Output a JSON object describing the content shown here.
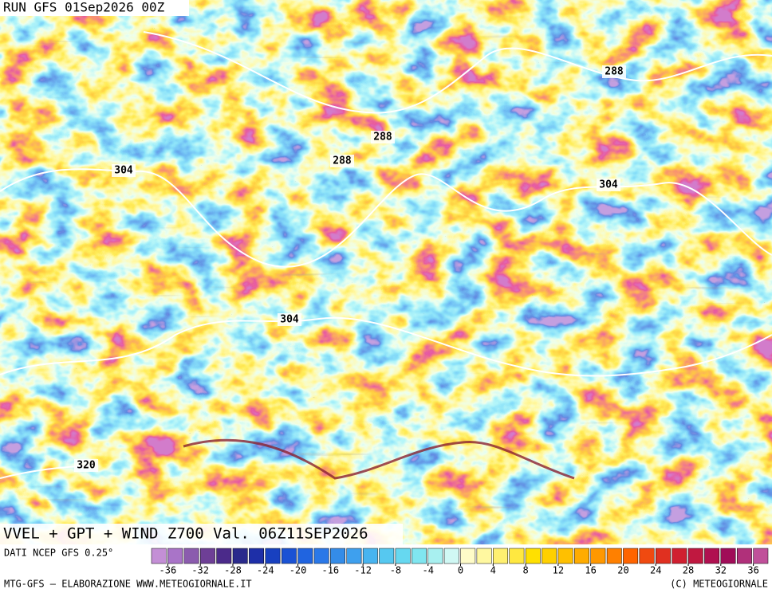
{
  "header": {
    "run": "RUN GFS 01Sep2026 00Z"
  },
  "map": {
    "title": "VVEL + GPT + WIND Z700 Val. 06Z11SEP2026",
    "contour_labels": [
      288,
      288,
      288,
      304,
      304,
      304,
      320
    ]
  },
  "colorbar": {
    "source": "DATI NCEP GFS 0.25°",
    "lim": [
      -38,
      38
    ],
    "ticks": [
      -36,
      -32,
      -28,
      -24,
      -20,
      -16,
      -12,
      -8,
      -4,
      0,
      4,
      8,
      12,
      16,
      20,
      24,
      28,
      32,
      36
    ],
    "colors": [
      "#c48fd6",
      "#a974c8",
      "#8b5cae",
      "#6e3f96",
      "#4b2a8a",
      "#2a2a8c",
      "#1e2fa8",
      "#1840c0",
      "#1a52d4",
      "#2064e0",
      "#2a78e8",
      "#348ce8",
      "#3ea0ee",
      "#48b4f0",
      "#56c8f0",
      "#66d8f0",
      "#80e6f0",
      "#a8f0f0",
      "#d0f8f4",
      "#fffcc8",
      "#fff8a0",
      "#fff070",
      "#ffe840",
      "#ffe000",
      "#ffd000",
      "#ffc000",
      "#ffac00",
      "#ff9800",
      "#ff8000",
      "#ff6400",
      "#f04a10",
      "#e03020",
      "#d02030",
      "#c01840",
      "#b01050",
      "#a00c58",
      "#b0307a",
      "#c0509a"
    ]
  },
  "footer": {
    "left": "MTG-GFS – ELABORAZIONE WWW.METEOGIORNALE.IT",
    "right": "(C) METEOGIORNALE"
  }
}
